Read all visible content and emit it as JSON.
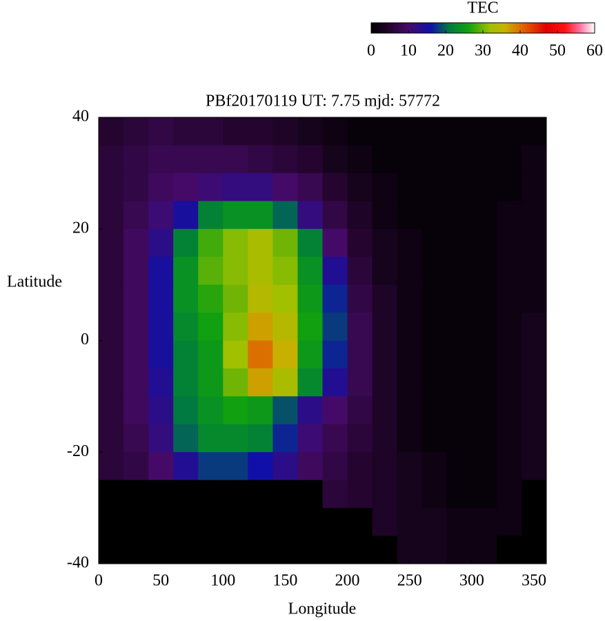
{
  "chart_data": {
    "type": "heatmap",
    "title": "PBf20170119  UT: 7.75  mjd: 57772",
    "x_label": "Longitude",
    "y_label": "Latitude",
    "xlim": [
      0,
      360
    ],
    "ylim": [
      -40,
      40
    ],
    "xticks": [
      0,
      50,
      100,
      150,
      200,
      250,
      300,
      350
    ],
    "yticks": [
      -40,
      -20,
      0,
      20,
      40
    ],
    "x": [
      10,
      30,
      50,
      70,
      90,
      110,
      130,
      150,
      170,
      190,
      210,
      230,
      250,
      270,
      290,
      310,
      330,
      350
    ],
    "y": [
      37.5,
      32.5,
      27.5,
      22.5,
      17.5,
      12.5,
      7.5,
      2.5,
      -2.5,
      -7.5,
      -12.5,
      -17.5,
      -22.5,
      -27.5,
      -32.5,
      -37.5
    ],
    "z": [
      [
        5,
        6,
        7,
        6,
        6,
        5,
        5,
        4,
        3,
        2,
        1,
        1,
        1,
        1,
        1,
        1,
        1,
        1
      ],
      [
        6,
        7,
        8,
        8,
        8,
        8,
        7,
        6,
        5,
        3,
        2,
        1,
        1,
        1,
        1,
        1,
        1,
        2
      ],
      [
        6,
        7,
        9,
        10,
        11,
        12,
        12,
        10,
        8,
        5,
        3,
        2,
        1,
        1,
        1,
        1,
        1,
        2
      ],
      [
        6,
        8,
        11,
        15,
        22,
        24,
        24,
        20,
        12,
        7,
        4,
        2,
        1,
        1,
        1,
        1,
        2,
        2
      ],
      [
        6,
        9,
        13,
        22,
        28,
        31,
        33,
        30,
        22,
        10,
        5,
        3,
        2,
        1,
        1,
        1,
        2,
        2
      ],
      [
        6,
        9,
        15,
        24,
        29,
        31,
        33,
        31,
        24,
        14,
        6,
        3,
        2,
        1,
        1,
        1,
        2,
        2
      ],
      [
        6,
        9,
        15,
        24,
        27,
        30,
        34,
        32,
        25,
        17,
        7,
        4,
        2,
        1,
        1,
        1,
        2,
        2
      ],
      [
        6,
        9,
        15,
        23,
        26,
        31,
        37,
        34,
        26,
        18,
        8,
        4,
        2,
        1,
        1,
        1,
        2,
        3
      ],
      [
        6,
        9,
        15,
        22,
        25,
        32,
        40,
        36,
        25,
        17,
        8,
        4,
        2,
        1,
        1,
        1,
        2,
        3
      ],
      [
        6,
        9,
        14,
        22,
        25,
        30,
        37,
        33,
        23,
        14,
        8,
        4,
        2,
        1,
        1,
        1,
        2,
        3
      ],
      [
        6,
        9,
        13,
        21,
        24,
        26,
        25,
        19,
        13,
        10,
        7,
        4,
        2,
        1,
        1,
        1,
        2,
        3
      ],
      [
        6,
        8,
        12,
        20,
        23,
        23,
        22,
        17,
        11,
        8,
        6,
        4,
        2,
        1,
        1,
        1,
        2,
        3
      ],
      [
        6,
        7,
        10,
        14,
        18,
        18,
        16,
        13,
        9,
        7,
        5,
        4,
        3,
        2,
        1,
        1,
        2,
        3
      ],
      [
        0,
        0,
        0,
        0,
        0,
        0,
        0,
        0,
        0,
        6,
        5,
        4,
        3,
        2,
        1,
        1,
        2,
        0
      ],
      [
        0,
        0,
        0,
        0,
        0,
        0,
        0,
        0,
        0,
        0,
        0,
        4,
        3,
        3,
        2,
        2,
        2,
        0
      ],
      [
        0,
        0,
        0,
        0,
        0,
        0,
        0,
        0,
        0,
        0,
        0,
        0,
        3,
        3,
        2,
        2,
        0,
        0
      ]
    ],
    "colorbar": {
      "title": "TEC",
      "lim": [
        0,
        60
      ],
      "ticks": [
        0,
        10,
        20,
        30,
        40,
        50,
        60
      ]
    },
    "colorscale": [
      [
        0,
        "#000000"
      ],
      [
        5,
        "#25052f"
      ],
      [
        10,
        "#450a68"
      ],
      [
        16,
        "#1010a8"
      ],
      [
        21,
        "#007a40"
      ],
      [
        26,
        "#10a010"
      ],
      [
        32,
        "#a0c000"
      ],
      [
        36,
        "#c8b000"
      ],
      [
        41,
        "#e06000"
      ],
      [
        47,
        "#e00000"
      ],
      [
        52,
        "#ff1010"
      ],
      [
        56,
        "#ff70a0"
      ],
      [
        60,
        "#ffffff"
      ]
    ]
  }
}
